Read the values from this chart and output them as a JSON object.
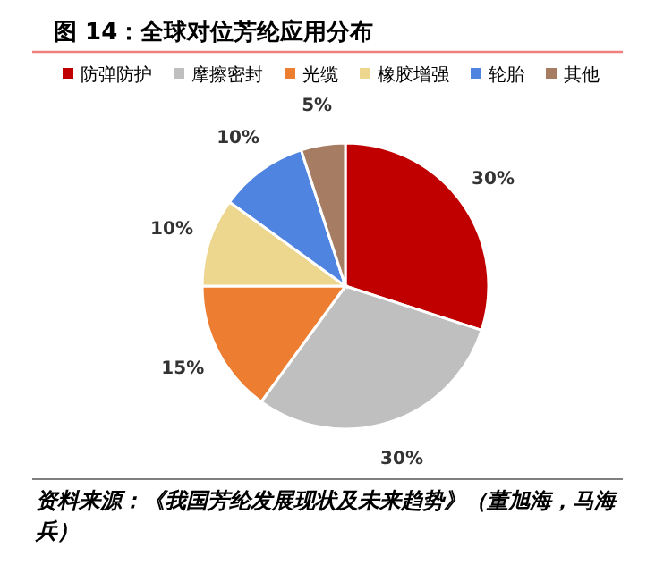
{
  "chart_data": {
    "type": "pie",
    "title": "图 14：全球对位芳纶应用分布",
    "categories": [
      "防弹防护",
      "摩擦密封",
      "光缆",
      "橡胶增强",
      "轮胎",
      "其他"
    ],
    "values": [
      30,
      30,
      15,
      10,
      10,
      5
    ],
    "colors": [
      "#c00000",
      "#bfbfbf",
      "#ed7d31",
      "#edd68e",
      "#4f84e0",
      "#a67c62"
    ],
    "value_labels": [
      "30%",
      "30%",
      "15%",
      "10%",
      "10%",
      "5%"
    ],
    "legend": "top",
    "annotations": [
      "资料来源：《我国芳纶发展现状及未来趋势》（董旭海，马海兵）"
    ]
  }
}
